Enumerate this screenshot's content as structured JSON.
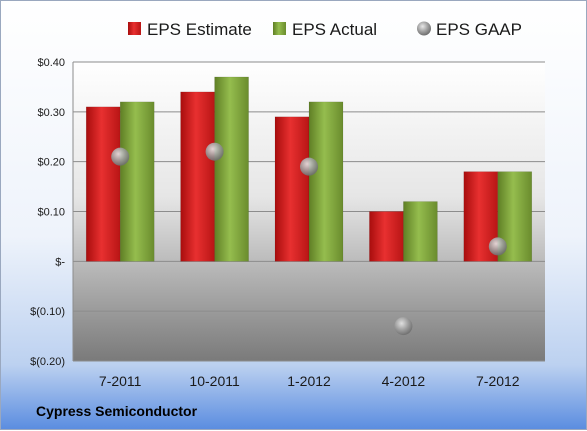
{
  "chart_data": {
    "type": "bar",
    "categories": [
      "7-2011",
      "10-2011",
      "1-2012",
      "4-2012",
      "7-2012"
    ],
    "series": [
      {
        "name": "EPS Estimate",
        "type": "bar",
        "color": "#d42020",
        "values": [
          0.31,
          0.34,
          0.29,
          0.1,
          0.18
        ]
      },
      {
        "name": "EPS Actual",
        "type": "bar",
        "color": "#7fa33a",
        "values": [
          0.32,
          0.37,
          0.32,
          0.12,
          0.18
        ]
      },
      {
        "name": "EPS GAAP",
        "type": "scatter",
        "color": "#9a9a9a",
        "values": [
          0.21,
          0.22,
          0.19,
          -0.13,
          0.03
        ]
      }
    ],
    "y_tick_labels": [
      "$0.40",
      "$0.30",
      "$0.20",
      "$0.10",
      "$-",
      "$(0.10)",
      "$(0.20)"
    ],
    "y_ticks": [
      0.4,
      0.3,
      0.2,
      0.1,
      0.0,
      -0.1,
      -0.2
    ],
    "ylim": [
      -0.2,
      0.4
    ],
    "grid": true,
    "legend": "top"
  },
  "company": "Cypress Semiconductor"
}
